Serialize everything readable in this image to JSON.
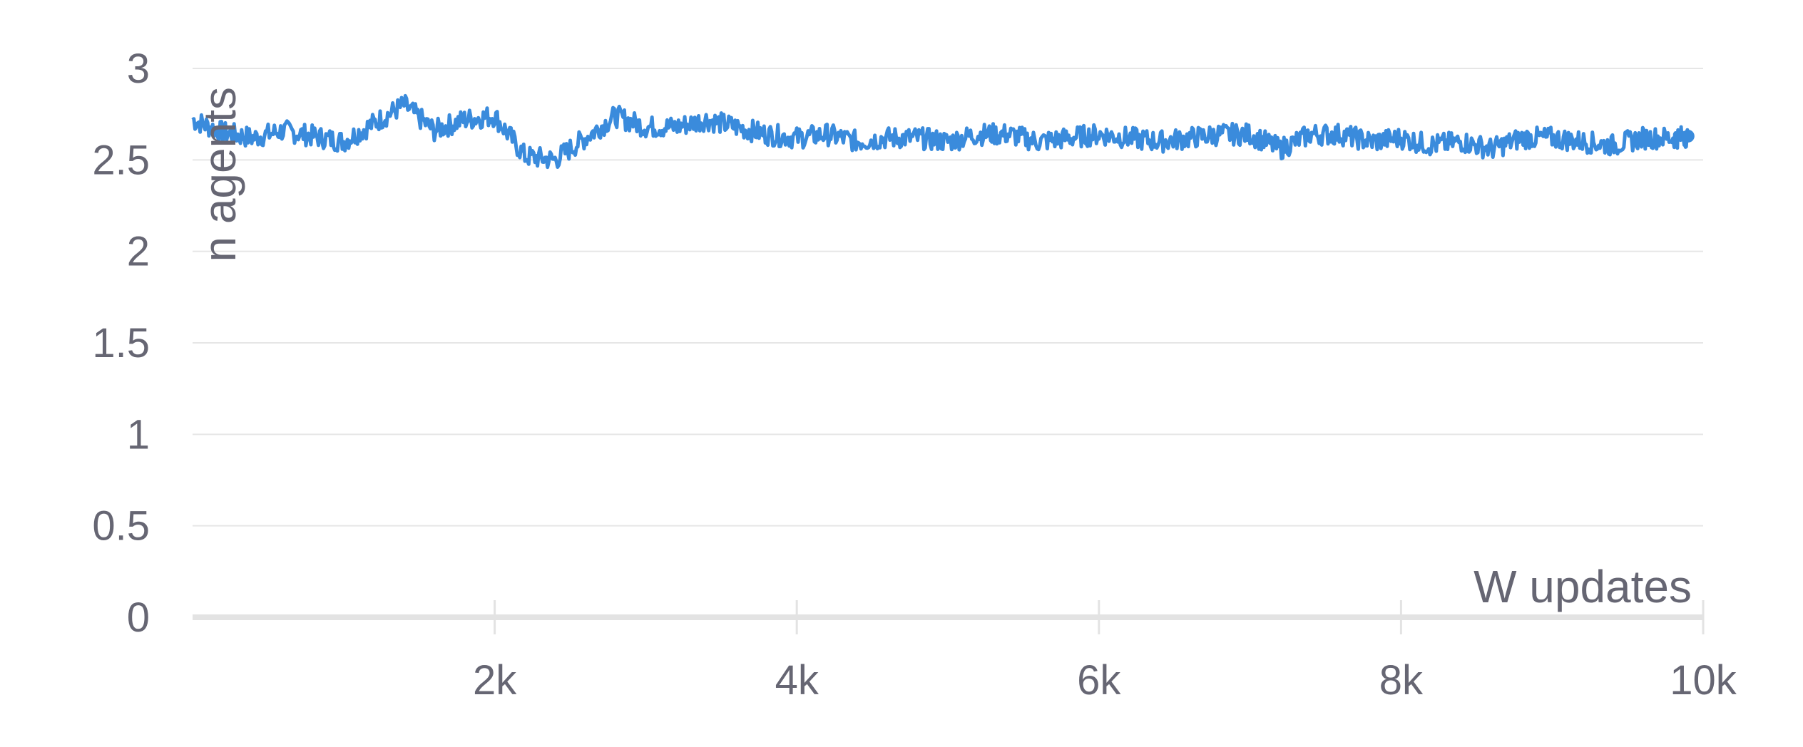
{
  "chart_data": {
    "type": "line",
    "title": "",
    "xlabel": "W updates",
    "ylabel": "n agents",
    "xlim": [
      0,
      10000
    ],
    "ylim": [
      0,
      3
    ],
    "x_ticks": [
      {
        "value": 2000,
        "label": "2k"
      },
      {
        "value": 4000,
        "label": "4k"
      },
      {
        "value": 6000,
        "label": "6k"
      },
      {
        "value": 8000,
        "label": "8k"
      },
      {
        "value": 10000,
        "label": "10k"
      }
    ],
    "y_ticks": [
      {
        "value": 0,
        "label": "0"
      },
      {
        "value": 0.5,
        "label": "0.5"
      },
      {
        "value": 1,
        "label": "1"
      },
      {
        "value": 1.5,
        "label": "1.5"
      },
      {
        "value": 2,
        "label": "2"
      },
      {
        "value": 2.5,
        "label": "2.5"
      },
      {
        "value": 3,
        "label": "3"
      }
    ],
    "grid": true,
    "line_color": "#3a8bdc",
    "series": [
      {
        "name": "n agents",
        "x": [
          0,
          200,
          400,
          600,
          800,
          1000,
          1200,
          1400,
          1600,
          1800,
          2000,
          2200,
          2400,
          2600,
          2800,
          3000,
          3200,
          3400,
          3600,
          3800,
          4000,
          4200,
          4400,
          4600,
          4800,
          5000,
          5200,
          5400,
          5600,
          5800,
          6000,
          6200,
          6400,
          6600,
          6800,
          7000,
          7200,
          7400,
          7600,
          7800,
          8000,
          8200,
          8400,
          8600,
          8800,
          9000,
          9200,
          9400,
          9600,
          9800,
          9900
        ],
        "y": [
          2.72,
          2.65,
          2.62,
          2.66,
          2.63,
          2.6,
          2.7,
          2.8,
          2.66,
          2.72,
          2.74,
          2.52,
          2.5,
          2.62,
          2.74,
          2.68,
          2.68,
          2.72,
          2.68,
          2.64,
          2.62,
          2.64,
          2.6,
          2.62,
          2.62,
          2.6,
          2.64,
          2.64,
          2.6,
          2.62,
          2.64,
          2.62,
          2.6,
          2.62,
          2.64,
          2.64,
          2.56,
          2.64,
          2.64,
          2.6,
          2.62,
          2.58,
          2.6,
          2.56,
          2.62,
          2.62,
          2.6,
          2.58,
          2.62,
          2.62,
          2.63
        ]
      }
    ]
  }
}
